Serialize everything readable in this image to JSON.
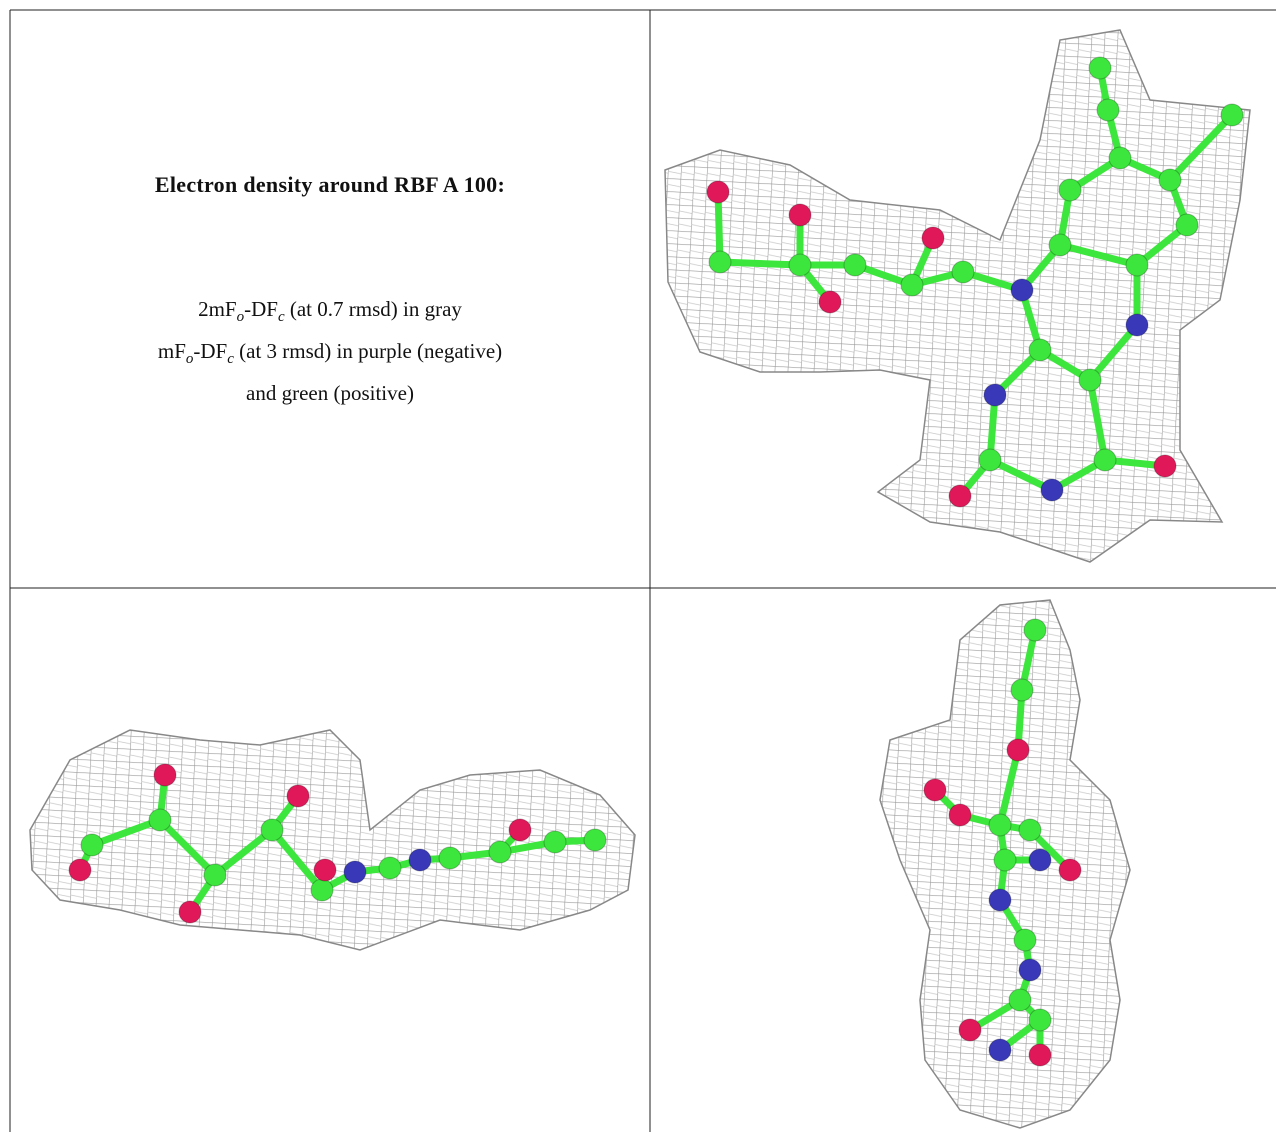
{
  "caption": {
    "title": "Electron density around RBF A 100:",
    "lines": [
      [
        {
          "text": "2mF"
        },
        {
          "sub": "o"
        },
        {
          "text": "-DF"
        },
        {
          "sub": "c"
        },
        {
          "text": " (at 0.7 rmsd) in gray"
        }
      ],
      [
        {
          "text": "mF"
        },
        {
          "sub": "o"
        },
        {
          "text": "-DF"
        },
        {
          "sub": "c"
        },
        {
          "text": " (at 3 rmsd) in purple (negative)"
        }
      ],
      [
        {
          "text": "and green (positive)"
        }
      ]
    ]
  }
}
